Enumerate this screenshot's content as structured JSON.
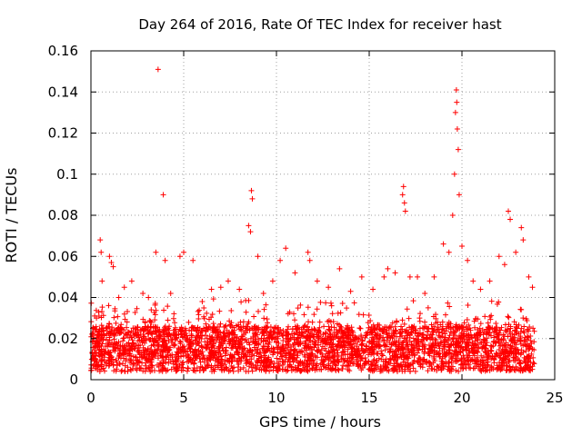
{
  "chart_data": {
    "type": "scatter",
    "title": "Day 264 of 2016, Rate Of TEC Index for receiver hast",
    "xlabel": "GPS time / hours",
    "ylabel": "ROTI / TECUs",
    "xlim": [
      0,
      25
    ],
    "ylim": [
      0,
      0.16
    ],
    "xticks": [
      0,
      5,
      10,
      15,
      20,
      25
    ],
    "yticks": [
      0,
      0.02,
      0.04,
      0.06,
      0.08,
      0.1,
      0.12,
      0.14,
      0.16
    ],
    "xtick_labels": [
      "0",
      "5",
      "10",
      "15",
      "20",
      "25"
    ],
    "ytick_labels": [
      "0",
      "0.02",
      "0.04",
      "0.06",
      "0.08",
      "0.1",
      "0.12",
      "0.14",
      "0.16"
    ],
    "grid": true,
    "marker": "+",
    "color": "#ff0000",
    "series": [
      {
        "name": "ROTI",
        "points": [
          [
            0.1,
            0.025
          ],
          [
            0.2,
            0.031
          ],
          [
            0.3,
            0.03
          ],
          [
            0.5,
            0.068
          ],
          [
            0.55,
            0.062
          ],
          [
            0.6,
            0.048
          ],
          [
            1.0,
            0.06
          ],
          [
            1.1,
            0.057
          ],
          [
            1.2,
            0.055
          ],
          [
            1.5,
            0.04
          ],
          [
            1.8,
            0.045
          ],
          [
            2.2,
            0.048
          ],
          [
            2.8,
            0.042
          ],
          [
            3.1,
            0.04
          ],
          [
            3.5,
            0.062
          ],
          [
            3.62,
            0.151
          ],
          [
            3.9,
            0.09
          ],
          [
            4.0,
            0.058
          ],
          [
            4.3,
            0.042
          ],
          [
            4.8,
            0.06
          ],
          [
            5.0,
            0.062
          ],
          [
            5.5,
            0.058
          ],
          [
            6.0,
            0.038
          ],
          [
            6.5,
            0.044
          ],
          [
            7.0,
            0.045
          ],
          [
            7.4,
            0.048
          ],
          [
            8.0,
            0.044
          ],
          [
            8.5,
            0.075
          ],
          [
            8.6,
            0.072
          ],
          [
            8.65,
            0.092
          ],
          [
            8.7,
            0.088
          ],
          [
            9.0,
            0.06
          ],
          [
            9.3,
            0.042
          ],
          [
            9.8,
            0.048
          ],
          [
            10.2,
            0.058
          ],
          [
            10.5,
            0.064
          ],
          [
            11.0,
            0.052
          ],
          [
            11.7,
            0.062
          ],
          [
            11.8,
            0.058
          ],
          [
            12.2,
            0.048
          ],
          [
            12.8,
            0.045
          ],
          [
            13.4,
            0.054
          ],
          [
            14.0,
            0.043
          ],
          [
            14.6,
            0.05
          ],
          [
            15.2,
            0.044
          ],
          [
            15.8,
            0.05
          ],
          [
            16.0,
            0.054
          ],
          [
            16.4,
            0.052
          ],
          [
            16.8,
            0.09
          ],
          [
            16.85,
            0.094
          ],
          [
            16.9,
            0.086
          ],
          [
            16.95,
            0.082
          ],
          [
            17.2,
            0.05
          ],
          [
            17.6,
            0.05
          ],
          [
            18.0,
            0.042
          ],
          [
            18.5,
            0.05
          ],
          [
            19.0,
            0.066
          ],
          [
            19.3,
            0.062
          ],
          [
            19.5,
            0.08
          ],
          [
            19.6,
            0.1
          ],
          [
            19.65,
            0.13
          ],
          [
            19.7,
            0.141
          ],
          [
            19.72,
            0.135
          ],
          [
            19.75,
            0.122
          ],
          [
            19.8,
            0.112
          ],
          [
            19.85,
            0.09
          ],
          [
            20.0,
            0.065
          ],
          [
            20.3,
            0.058
          ],
          [
            20.6,
            0.048
          ],
          [
            21.0,
            0.044
          ],
          [
            21.5,
            0.048
          ],
          [
            22.0,
            0.06
          ],
          [
            22.3,
            0.056
          ],
          [
            22.5,
            0.082
          ],
          [
            22.6,
            0.078
          ],
          [
            22.9,
            0.062
          ],
          [
            23.2,
            0.074
          ],
          [
            23.3,
            0.068
          ],
          [
            23.6,
            0.05
          ],
          [
            23.8,
            0.045
          ]
        ]
      }
    ]
  }
}
